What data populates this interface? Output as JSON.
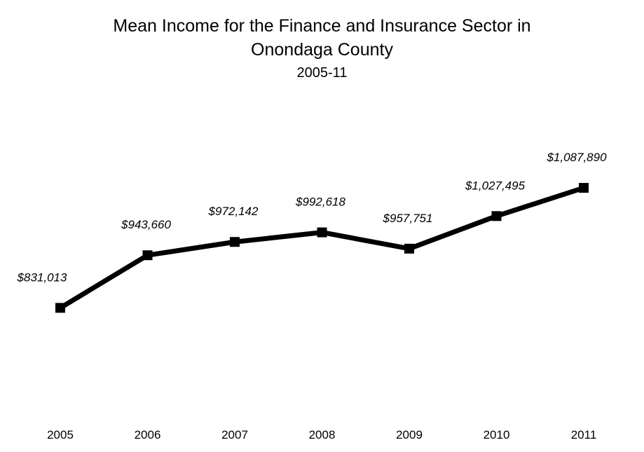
{
  "chart_data": {
    "type": "line",
    "title": "Mean Income for the Finance and Insurance Sector in",
    "title_line2": "Onondaga County",
    "subtitle": "2005-11",
    "categories": [
      "2005",
      "2006",
      "2007",
      "2008",
      "2009",
      "2010",
      "2011"
    ],
    "values": [
      831013,
      943660,
      972142,
      992618,
      957751,
      1027495,
      1087890
    ],
    "data_labels": [
      "$831,013",
      "$943,660",
      "$972,142",
      "$992,618",
      "$957,751",
      "$1,027,495",
      "$1,087,890"
    ],
    "ylim": [
      650000,
      1250000
    ],
    "grid": false,
    "legend": "none",
    "line_color": "#000000",
    "marker": "square"
  }
}
